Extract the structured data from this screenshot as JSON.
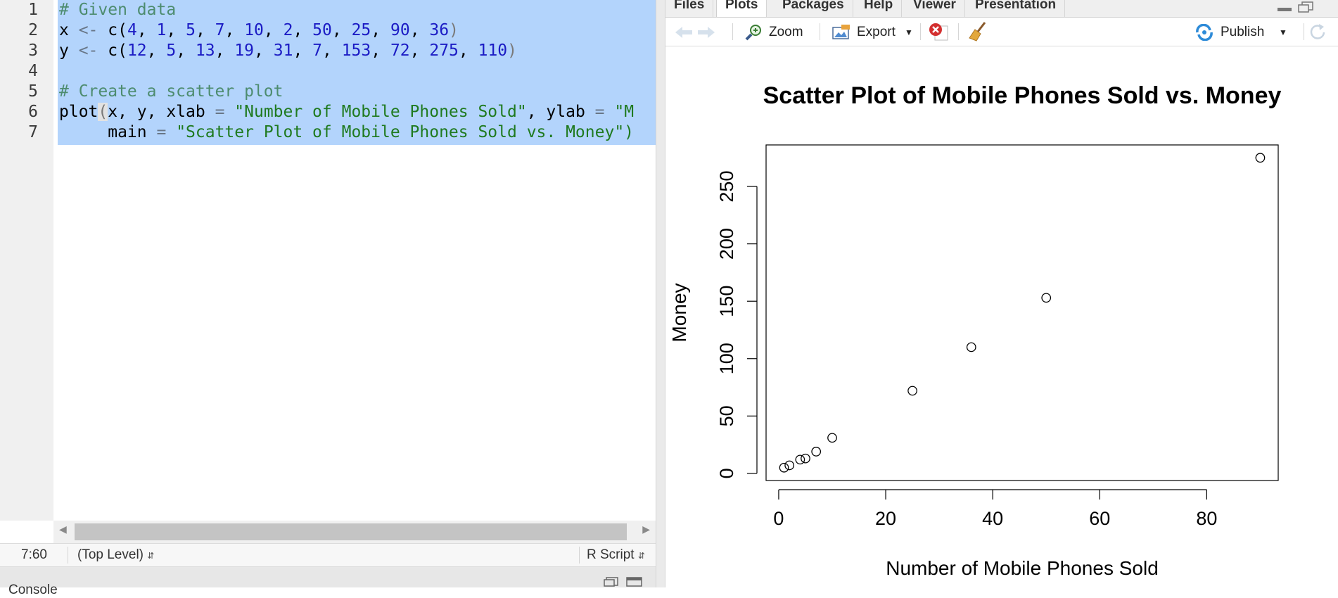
{
  "editor": {
    "line_numbers": [
      "1",
      "2",
      "3",
      "4",
      "5",
      "6",
      "7"
    ],
    "lines": {
      "l1": {
        "comment": "# Given data"
      },
      "l2": {
        "var": "x ",
        "op": "<-",
        "fn": " c(",
        "n1": "4",
        "s1": ", ",
        "n2": "1",
        "s2": ", ",
        "n3": "5",
        "s3": ", ",
        "n4": "7",
        "s4": ", ",
        "n5": "10",
        "s5": ", ",
        "n6": "2",
        "s6": ", ",
        "n7": "50",
        "s7": ", ",
        "n8": "25",
        "s8": ", ",
        "n9": "90",
        "s9": ", ",
        "n10": "36",
        "close": ")"
      },
      "l3": {
        "var": "y ",
        "op": "<-",
        "fn": " c(",
        "n1": "12",
        "s1": ", ",
        "n2": "5",
        "s2": ", ",
        "n3": "13",
        "s3": ", ",
        "n4": "19",
        "s4": ", ",
        "n5": "31",
        "s5": ", ",
        "n6": "7",
        "s6": ", ",
        "n7": "153",
        "s7": ", ",
        "n8": "72",
        "s8": ", ",
        "n9": "275",
        "s9": ", ",
        "n10": "110",
        "close": ")"
      },
      "l5": {
        "comment": "# Create a scatter plot"
      },
      "l6": {
        "fn": "plot",
        "paren": "(",
        "args": "x, y, xlab ",
        "eq1": "=",
        "str1": " \"Number of Mobile Phones Sold\"",
        "mid": ", ylab ",
        "eq2": "=",
        "str2": " \"M"
      },
      "l7": {
        "indent": "     main ",
        "eq": "=",
        "str": " \"Scatter Plot of Mobile Phones Sold vs. Money\")"
      }
    }
  },
  "status_bar": {
    "cursor_position": "7:60",
    "scope": "(Top Level)",
    "file_type": "R Script"
  },
  "console": {
    "label": "Console"
  },
  "viewer": {
    "tabs": [
      "Files",
      "Plots",
      "Packages",
      "Help",
      "Viewer",
      "Presentation"
    ],
    "active_tab": "Plots",
    "toolbar": {
      "zoom_label": "Zoom",
      "export_label": "Export",
      "publish_label": "Publish"
    }
  },
  "icons": [
    "back-arrow-icon",
    "forward-arrow-icon",
    "zoom-icon",
    "export-icon",
    "remove-plot-icon",
    "broom-icon",
    "publish-icon",
    "refresh-icon",
    "minimize-icon",
    "maximize-icon"
  ],
  "chart_data": {
    "type": "scatter",
    "title": "Scatter Plot of Mobile Phones Sold vs. Money",
    "xlabel": "Number of Mobile Phones Sold",
    "ylabel": "Money",
    "x": [
      4,
      1,
      5,
      7,
      10,
      2,
      50,
      25,
      90,
      36
    ],
    "y": [
      12,
      5,
      13,
      19,
      31,
      7,
      153,
      72,
      275,
      110
    ],
    "xticks": [
      0,
      20,
      40,
      60,
      80
    ],
    "yticks": [
      0,
      50,
      100,
      150,
      200,
      250
    ],
    "xlim": [
      -2.36,
      93.36
    ],
    "ylim": [
      -6.2,
      286.2
    ],
    "grid": false,
    "marker": "open-circle"
  }
}
